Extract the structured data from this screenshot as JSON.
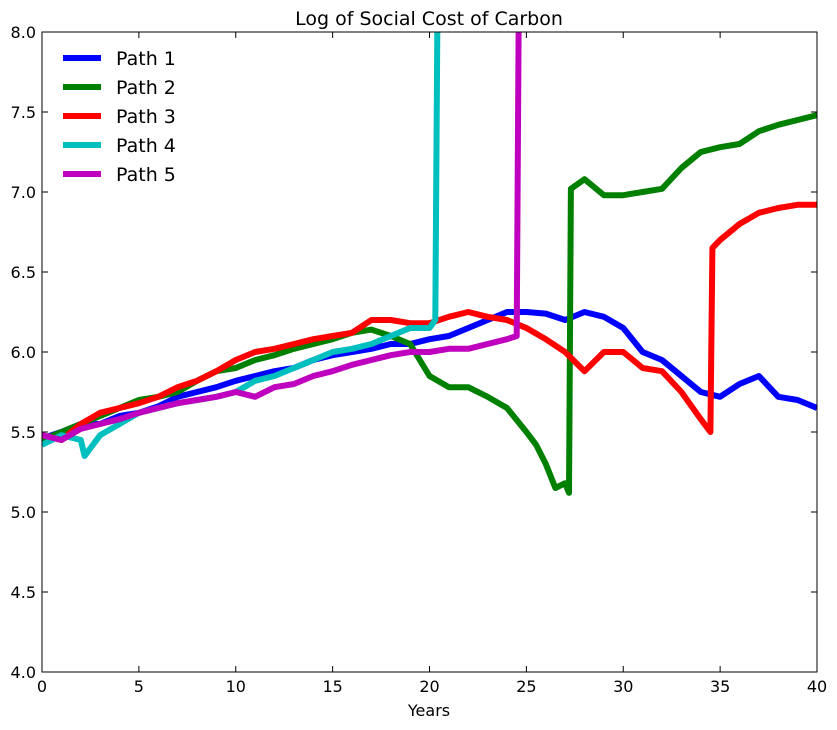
{
  "chart_data": {
    "type": "line",
    "title": "Log of Social Cost of Carbon",
    "xlabel": "Years",
    "ylabel": "",
    "xlim": [
      0,
      40
    ],
    "ylim": [
      4.0,
      8.0
    ],
    "xticks": [
      "0",
      "5",
      "10",
      "15",
      "20",
      "25",
      "30",
      "35",
      "40"
    ],
    "yticks": [
      "4.0",
      "4.5",
      "5.0",
      "5.5",
      "6.0",
      "6.5",
      "7.0",
      "7.5",
      "8.0"
    ],
    "grid": false,
    "legend": "top-left",
    "series": [
      {
        "name": "Path 1",
        "color": "#0000ff",
        "points": [
          [
            0,
            5.46
          ],
          [
            1,
            5.5
          ],
          [
            2,
            5.55
          ],
          [
            3,
            5.55
          ],
          [
            4,
            5.6
          ],
          [
            5,
            5.62
          ],
          [
            6,
            5.66
          ],
          [
            7,
            5.72
          ],
          [
            8,
            5.75
          ],
          [
            9,
            5.78
          ],
          [
            10,
            5.82
          ],
          [
            11,
            5.85
          ],
          [
            12,
            5.88
          ],
          [
            13,
            5.9
          ],
          [
            14,
            5.95
          ],
          [
            15,
            5.98
          ],
          [
            16,
            6.0
          ],
          [
            17,
            6.02
          ],
          [
            18,
            6.05
          ],
          [
            19,
            6.05
          ],
          [
            20,
            6.08
          ],
          [
            21,
            6.1
          ],
          [
            22,
            6.15
          ],
          [
            23,
            6.2
          ],
          [
            24,
            6.25
          ],
          [
            25,
            6.25
          ],
          [
            26,
            6.24
          ],
          [
            27,
            6.2
          ],
          [
            28,
            6.25
          ],
          [
            29,
            6.22
          ],
          [
            30,
            6.15
          ],
          [
            31,
            6.0
          ],
          [
            32,
            5.95
          ],
          [
            33,
            5.85
          ],
          [
            34,
            5.75
          ],
          [
            35,
            5.72
          ],
          [
            36,
            5.8
          ],
          [
            37,
            5.85
          ],
          [
            38,
            5.72
          ],
          [
            39,
            5.7
          ],
          [
            40,
            5.65
          ]
        ]
      },
      {
        "name": "Path 2",
        "color": "#008000",
        "points": [
          [
            0,
            5.45
          ],
          [
            1,
            5.5
          ],
          [
            2,
            5.55
          ],
          [
            3,
            5.6
          ],
          [
            4,
            5.65
          ],
          [
            5,
            5.7
          ],
          [
            6,
            5.72
          ],
          [
            7,
            5.75
          ],
          [
            8,
            5.82
          ],
          [
            9,
            5.88
          ],
          [
            10,
            5.9
          ],
          [
            11,
            5.95
          ],
          [
            12,
            5.98
          ],
          [
            13,
            6.02
          ],
          [
            14,
            6.05
          ],
          [
            15,
            6.08
          ],
          [
            16,
            6.12
          ],
          [
            17,
            6.14
          ],
          [
            18,
            6.1
          ],
          [
            19,
            6.05
          ],
          [
            19.5,
            5.95
          ],
          [
            20,
            5.85
          ],
          [
            21,
            5.78
          ],
          [
            22,
            5.78
          ],
          [
            23,
            5.72
          ],
          [
            24,
            5.65
          ],
          [
            25,
            5.5
          ],
          [
            25.5,
            5.42
          ],
          [
            26,
            5.3
          ],
          [
            26.5,
            5.15
          ],
          [
            27,
            5.18
          ],
          [
            27.2,
            5.12
          ],
          [
            27.3,
            7.02
          ],
          [
            28,
            7.08
          ],
          [
            29,
            6.98
          ],
          [
            30,
            6.98
          ],
          [
            31,
            7.0
          ],
          [
            32,
            7.02
          ],
          [
            33,
            7.15
          ],
          [
            34,
            7.25
          ],
          [
            35,
            7.28
          ],
          [
            36,
            7.3
          ],
          [
            37,
            7.38
          ],
          [
            38,
            7.42
          ],
          [
            39,
            7.45
          ],
          [
            40,
            7.48
          ]
        ]
      },
      {
        "name": "Path 3",
        "color": "#ff0000",
        "points": [
          [
            0,
            5.48
          ],
          [
            1,
            5.45
          ],
          [
            2,
            5.55
          ],
          [
            3,
            5.62
          ],
          [
            4,
            5.65
          ],
          [
            5,
            5.68
          ],
          [
            6,
            5.72
          ],
          [
            7,
            5.78
          ],
          [
            8,
            5.82
          ],
          [
            9,
            5.88
          ],
          [
            10,
            5.95
          ],
          [
            11,
            6.0
          ],
          [
            12,
            6.02
          ],
          [
            13,
            6.05
          ],
          [
            14,
            6.08
          ],
          [
            15,
            6.1
          ],
          [
            16,
            6.12
          ],
          [
            17,
            6.2
          ],
          [
            18,
            6.2
          ],
          [
            19,
            6.18
          ],
          [
            20,
            6.18
          ],
          [
            21,
            6.22
          ],
          [
            22,
            6.25
          ],
          [
            23,
            6.22
          ],
          [
            24,
            6.2
          ],
          [
            25,
            6.15
          ],
          [
            26,
            6.08
          ],
          [
            27,
            6.0
          ],
          [
            28,
            5.88
          ],
          [
            29,
            6.0
          ],
          [
            30,
            6.0
          ],
          [
            31,
            5.9
          ],
          [
            32,
            5.88
          ],
          [
            33,
            5.75
          ],
          [
            34,
            5.58
          ],
          [
            34.5,
            5.5
          ],
          [
            34.6,
            6.65
          ],
          [
            35,
            6.7
          ],
          [
            36,
            6.8
          ],
          [
            37,
            6.87
          ],
          [
            38,
            6.9
          ],
          [
            39,
            6.92
          ],
          [
            40,
            6.92
          ]
        ]
      },
      {
        "name": "Path 4",
        "color": "#00bfbf",
        "points": [
          [
            0,
            5.42
          ],
          [
            1,
            5.48
          ],
          [
            2,
            5.45
          ],
          [
            2.2,
            5.35
          ],
          [
            3,
            5.48
          ],
          [
            4,
            5.55
          ],
          [
            5,
            5.62
          ],
          [
            6,
            5.65
          ],
          [
            7,
            5.68
          ],
          [
            8,
            5.7
          ],
          [
            9,
            5.72
          ],
          [
            10,
            5.75
          ],
          [
            11,
            5.82
          ],
          [
            12,
            5.85
          ],
          [
            13,
            5.9
          ],
          [
            14,
            5.95
          ],
          [
            15,
            6.0
          ],
          [
            16,
            6.02
          ],
          [
            17,
            6.05
          ],
          [
            18,
            6.1
          ],
          [
            19,
            6.15
          ],
          [
            20,
            6.15
          ],
          [
            20.3,
            6.2
          ],
          [
            20.4,
            8.0
          ]
        ]
      },
      {
        "name": "Path 5",
        "color": "#bf00bf",
        "points": [
          [
            0,
            5.48
          ],
          [
            1,
            5.45
          ],
          [
            2,
            5.52
          ],
          [
            3,
            5.55
          ],
          [
            4,
            5.58
          ],
          [
            5,
            5.62
          ],
          [
            6,
            5.65
          ],
          [
            7,
            5.68
          ],
          [
            8,
            5.7
          ],
          [
            9,
            5.72
          ],
          [
            10,
            5.75
          ],
          [
            11,
            5.72
          ],
          [
            12,
            5.78
          ],
          [
            13,
            5.8
          ],
          [
            14,
            5.85
          ],
          [
            15,
            5.88
          ],
          [
            16,
            5.92
          ],
          [
            17,
            5.95
          ],
          [
            18,
            5.98
          ],
          [
            19,
            6.0
          ],
          [
            20,
            6.0
          ],
          [
            21,
            6.02
          ],
          [
            22,
            6.02
          ],
          [
            23,
            6.05
          ],
          [
            24,
            6.08
          ],
          [
            24.5,
            6.1
          ],
          [
            24.6,
            8.0
          ]
        ]
      }
    ]
  }
}
